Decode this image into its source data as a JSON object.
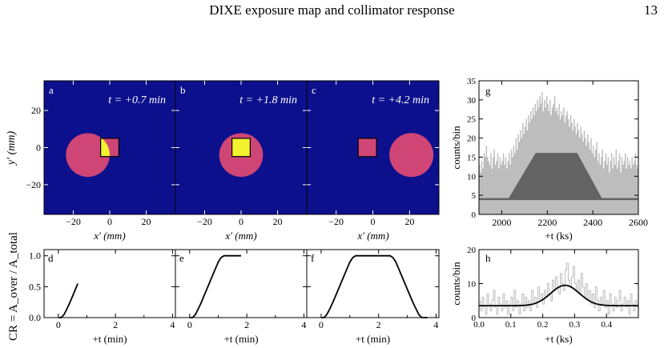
{
  "header": {
    "title": "DIXE exposure map and collimator response",
    "page_number": "13"
  },
  "colors": {
    "background": "#0d108c",
    "collimator_disk": "#cf4576",
    "detector_square": "#cf4576",
    "overlap": "#f2f230",
    "histogram": "#bdbdbd",
    "model_fill": "#636363",
    "curve": "#000000"
  },
  "maps": [
    {
      "panel": "a",
      "time_label": "t = +0.7 min",
      "circle_center_mm": [
        -12,
        -4
      ],
      "circle_radius_mm": 12,
      "square_center_mm": [
        0,
        0
      ],
      "square_half_mm": 5
    },
    {
      "panel": "b",
      "time_label": "t = +1.8 min",
      "circle_center_mm": [
        0,
        -4
      ],
      "circle_radius_mm": 12,
      "square_center_mm": [
        0,
        0
      ],
      "square_half_mm": 5
    },
    {
      "panel": "c",
      "time_label": "t = +4.2 min",
      "circle_center_mm": [
        21,
        -4
      ],
      "circle_radius_mm": 12,
      "square_center_mm": [
        -3,
        0
      ],
      "square_half_mm": 5
    }
  ],
  "map_axes": {
    "xlabel": "x′ (mm)",
    "ylabel": "y′ (mm)",
    "xticks": [
      "−20",
      "0",
      "20"
    ],
    "yticks": [
      "20",
      "0",
      "−20"
    ]
  },
  "chart_data": [
    {
      "type": "line",
      "panel": "d",
      "x": [
        0.0,
        0.1,
        0.2,
        0.3,
        0.4,
        0.5,
        0.6,
        0.68
      ],
      "y": [
        0.0,
        0.0,
        0.05,
        0.14,
        0.24,
        0.35,
        0.46,
        0.55
      ],
      "xlim": [
        -0.5,
        4.1
      ],
      "ylim": [
        0,
        1.1
      ],
      "xticks": [
        "0",
        "2",
        "4"
      ],
      "yticks": [
        "0.0",
        "0.5",
        "1.0"
      ],
      "xlabel": "+t (min)",
      "ylabel": "CR = A_over / A_total"
    },
    {
      "type": "line",
      "panel": "e",
      "x": [
        0.0,
        0.1,
        0.2,
        0.3,
        0.4,
        0.6,
        0.8,
        1.0,
        1.1,
        1.2,
        1.3,
        1.8
      ],
      "y": [
        0.0,
        0.0,
        0.05,
        0.14,
        0.24,
        0.46,
        0.68,
        0.9,
        0.97,
        1.0,
        1.0,
        1.0
      ],
      "xlim": [
        -0.5,
        4.1
      ],
      "ylim": [
        0,
        1.1
      ],
      "xticks": [
        "0",
        "2",
        "4"
      ],
      "yticks": [],
      "xlabel": "+t (min)"
    },
    {
      "type": "line",
      "panel": "f",
      "x": [
        0.0,
        0.1,
        0.2,
        0.3,
        0.4,
        0.6,
        0.8,
        1.0,
        1.1,
        1.2,
        1.3,
        2.3,
        2.4,
        2.5,
        2.6,
        2.8,
        3.0,
        3.2,
        3.4,
        3.5,
        3.6,
        3.7
      ],
      "y": [
        0.0,
        0.0,
        0.05,
        0.14,
        0.24,
        0.46,
        0.68,
        0.9,
        0.97,
        1.0,
        1.0,
        1.0,
        1.0,
        0.97,
        0.9,
        0.68,
        0.46,
        0.24,
        0.05,
        0.0,
        0.0,
        0.0
      ],
      "xlim": [
        -0.5,
        4.1
      ],
      "ylim": [
        0,
        1.1
      ],
      "xticks": [
        "0",
        "2",
        "4"
      ],
      "yticks": [],
      "xlabel": "+t (min)"
    },
    {
      "type": "bar",
      "panel": "g",
      "xlim": [
        1900,
        2600
      ],
      "ylim": [
        0,
        35
      ],
      "xticks": [
        "2000",
        "2200",
        "2400",
        "2600"
      ],
      "yticks": [
        "0",
        "5",
        "10",
        "15",
        "20",
        "25",
        "30",
        "35"
      ],
      "xlabel": "+t (ks)",
      "ylabel": "counts/bin",
      "background_level": 4,
      "model_trapezoid_x": [
        2030,
        2150,
        2330,
        2440
      ],
      "model_peak": 16,
      "data_x": [
        1900,
        1905,
        1910,
        1915,
        1920,
        1925,
        1930,
        1935,
        1940,
        1945,
        1950,
        1955,
        1960,
        1965,
        1970,
        1975,
        1980,
        1985,
        1990,
        1995,
        2000,
        2005,
        2010,
        2015,
        2020,
        2025,
        2030,
        2035,
        2040,
        2045,
        2050,
        2055,
        2060,
        2065,
        2070,
        2075,
        2080,
        2085,
        2090,
        2095,
        2100,
        2105,
        2110,
        2115,
        2120,
        2125,
        2130,
        2135,
        2140,
        2145,
        2150,
        2155,
        2160,
        2165,
        2170,
        2175,
        2180,
        2185,
        2190,
        2195,
        2200,
        2205,
        2210,
        2215,
        2220,
        2225,
        2230,
        2235,
        2240,
        2245,
        2250,
        2255,
        2260,
        2265,
        2270,
        2275,
        2280,
        2285,
        2290,
        2295,
        2300,
        2305,
        2310,
        2315,
        2320,
        2325,
        2330,
        2335,
        2340,
        2345,
        2350,
        2355,
        2360,
        2365,
        2370,
        2375,
        2380,
        2385,
        2390,
        2395,
        2400,
        2405,
        2410,
        2415,
        2420,
        2425,
        2430,
        2435,
        2440,
        2445,
        2450,
        2455,
        2460,
        2465,
        2470,
        2475,
        2480,
        2485,
        2490,
        2495,
        2500,
        2505,
        2510,
        2515,
        2520,
        2525,
        2530,
        2535,
        2540,
        2545,
        2550,
        2555,
        2560,
        2565,
        2570,
        2575,
        2580,
        2585,
        2590,
        2595
      ],
      "data_y": [
        13,
        11,
        14,
        12,
        16,
        15,
        18,
        15,
        14,
        13,
        16,
        12,
        15,
        17,
        13,
        14,
        16,
        12,
        15,
        13,
        14,
        16,
        13,
        15,
        12,
        14,
        16,
        13,
        17,
        15,
        18,
        16,
        20,
        17,
        21,
        19,
        22,
        20,
        24,
        21,
        23,
        25,
        22,
        26,
        24,
        27,
        25,
        28,
        26,
        29,
        27,
        30,
        28,
        31,
        29,
        32,
        27,
        30,
        28,
        31,
        29,
        27,
        30,
        26,
        28,
        29,
        31,
        27,
        28,
        26,
        29,
        25,
        27,
        26,
        28,
        24,
        26,
        27,
        25,
        23,
        26,
        24,
        22,
        25,
        23,
        21,
        24,
        22,
        20,
        23,
        21,
        19,
        22,
        20,
        18,
        21,
        19,
        17,
        20,
        16,
        18,
        15,
        17,
        19,
        14,
        16,
        13,
        15,
        17,
        12,
        14,
        16,
        13,
        15,
        11,
        14,
        16,
        12,
        15,
        13,
        17,
        12,
        14,
        16,
        11,
        15,
        13,
        14,
        16,
        12,
        15,
        13,
        14,
        12,
        15,
        13,
        14,
        16,
        13,
        12
      ]
    },
    {
      "type": "bar",
      "panel": "h",
      "xlim": [
        0.0,
        0.5
      ],
      "ylim": [
        0,
        20
      ],
      "xticks": [
        "0.0",
        "0.1",
        "0.2",
        "0.3",
        "0.4"
      ],
      "yticks": [
        "0",
        "10",
        "20"
      ],
      "xlabel": "+t (ks)",
      "ylabel": "counts/bin",
      "model_baseline": 3.5,
      "model_peak": 9.5,
      "model_center": 0.27,
      "model_width": 0.045,
      "data_x": [
        0.0,
        0.005,
        0.01,
        0.015,
        0.02,
        0.025,
        0.03,
        0.035,
        0.04,
        0.045,
        0.05,
        0.055,
        0.06,
        0.065,
        0.07,
        0.075,
        0.08,
        0.085,
        0.09,
        0.095,
        0.1,
        0.105,
        0.11,
        0.115,
        0.12,
        0.125,
        0.13,
        0.135,
        0.14,
        0.145,
        0.15,
        0.155,
        0.16,
        0.165,
        0.17,
        0.175,
        0.18,
        0.185,
        0.19,
        0.195,
        0.2,
        0.205,
        0.21,
        0.215,
        0.22,
        0.225,
        0.23,
        0.235,
        0.24,
        0.245,
        0.25,
        0.255,
        0.26,
        0.265,
        0.27,
        0.275,
        0.28,
        0.285,
        0.29,
        0.295,
        0.3,
        0.305,
        0.31,
        0.315,
        0.32,
        0.325,
        0.33,
        0.335,
        0.34,
        0.345,
        0.35,
        0.355,
        0.36,
        0.365,
        0.37,
        0.375,
        0.38,
        0.385,
        0.39,
        0.395,
        0.4,
        0.405,
        0.41,
        0.415,
        0.42,
        0.425,
        0.43,
        0.435,
        0.44,
        0.445,
        0.45,
        0.455,
        0.46,
        0.465,
        0.47,
        0.475,
        0.48,
        0.485,
        0.49,
        0.495
      ],
      "data_y": [
        5,
        2,
        6,
        3,
        1,
        7,
        4,
        2,
        5,
        8,
        3,
        1,
        6,
        4,
        2,
        7,
        3,
        5,
        1,
        4,
        6,
        2,
        8,
        3,
        5,
        1,
        4,
        7,
        2,
        6,
        3,
        5,
        2,
        8,
        4,
        6,
        3,
        9,
        5,
        7,
        4,
        8,
        6,
        10,
        7,
        5,
        11,
        8,
        12,
        9,
        7,
        13,
        10,
        8,
        14,
        16,
        11,
        9,
        12,
        15,
        10,
        8,
        11,
        7,
        13,
        9,
        6,
        10,
        5,
        8,
        4,
        7,
        3,
        9,
        5,
        2,
        6,
        4,
        8,
        3,
        5,
        1,
        7,
        4,
        2,
        6,
        3,
        5,
        8,
        2,
        4,
        6,
        3,
        5,
        1,
        7,
        4,
        2,
        5,
        3
      ]
    }
  ]
}
